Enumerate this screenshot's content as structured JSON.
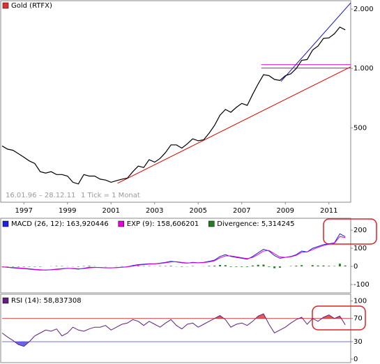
{
  "chart_data": [
    {
      "type": "line",
      "name": "Gold (RTFX)",
      "color": "#000000",
      "legend_color": "#e03030",
      "log": true,
      "annotations": [
        "16.01.96 – 28.12.11",
        "1 Tick = 1 Monat"
      ],
      "xlim": [
        1996.0,
        2012.0
      ],
      "xticks": [
        1997,
        1999,
        2001,
        2003,
        2005,
        2007,
        2009,
        2011
      ],
      "ylim": [
        210,
        2170
      ],
      "yticks": [
        {
          "value": 2000,
          "label": "2.000"
        },
        {
          "value": 1000,
          "label": "1.000"
        },
        500
      ],
      "x": [
        1996.0,
        1996.25,
        1996.5,
        1996.75,
        1997.0,
        1997.25,
        1997.5,
        1997.75,
        1998.0,
        1998.25,
        1998.5,
        1998.75,
        1999.0,
        1999.25,
        1999.5,
        1999.75,
        2000.0,
        2000.25,
        2000.5,
        2000.75,
        2001.0,
        2001.25,
        2001.5,
        2001.75,
        2002.0,
        2002.25,
        2002.5,
        2002.75,
        2003.0,
        2003.25,
        2003.5,
        2003.75,
        2004.0,
        2004.25,
        2004.5,
        2004.75,
        2005.0,
        2005.25,
        2005.5,
        2005.75,
        2006.0,
        2006.25,
        2006.5,
        2006.75,
        2007.0,
        2007.25,
        2007.5,
        2007.75,
        2008.0,
        2008.25,
        2008.5,
        2008.75,
        2009.0,
        2009.25,
        2009.5,
        2009.75,
        2010.0,
        2010.25,
        2010.5,
        2010.75,
        2011.0,
        2011.25,
        2011.5,
        2011.75
      ],
      "values": [
        405,
        390,
        385,
        370,
        355,
        340,
        330,
        300,
        295,
        300,
        290,
        290,
        285,
        265,
        260,
        290,
        285,
        285,
        275,
        272,
        265,
        270,
        275,
        278,
        300,
        320,
        315,
        345,
        335,
        350,
        375,
        410,
        410,
        395,
        415,
        440,
        430,
        435,
        470,
        515,
        580,
        620,
        600,
        635,
        665,
        650,
        740,
        835,
        930,
        920,
        880,
        870,
        920,
        940,
        1000,
        1100,
        1110,
        1240,
        1300,
        1420,
        1430,
        1500,
        1620,
        1570
      ],
      "trendlines": [
        {
          "color": "#e00000",
          "x": [
            2001.3,
            2012.0
          ],
          "values": [
            262,
            1020
          ]
        },
        {
          "color": "#2020c0",
          "x": [
            2008.8,
            2012.0
          ],
          "values": [
            860,
            2150
          ]
        },
        {
          "color": "#cc00cc",
          "x": [
            2007.9,
            2012.0
          ],
          "values": [
            1045,
            1045
          ]
        },
        {
          "color": "#cc00cc",
          "x": [
            2007.9,
            2012.0
          ],
          "values": [
            1005,
            1005
          ]
        }
      ]
    },
    {
      "type": "macd",
      "xlim": [
        1996.0,
        2012.0
      ],
      "ylim": [
        -146,
        258
      ],
      "yticks": [
        200,
        100,
        0,
        -100
      ],
      "x": [
        1996.0,
        1996.25,
        1996.5,
        1996.75,
        1997.0,
        1997.25,
        1997.5,
        1997.75,
        1998.0,
        1998.25,
        1998.5,
        1998.75,
        1999.0,
        1999.25,
        1999.5,
        1999.75,
        2000.0,
        2000.25,
        2000.5,
        2000.75,
        2001.0,
        2001.25,
        2001.5,
        2001.75,
        2002.0,
        2002.25,
        2002.5,
        2002.75,
        2003.0,
        2003.25,
        2003.5,
        2003.75,
        2004.0,
        2004.25,
        2004.5,
        2004.75,
        2005.0,
        2005.25,
        2005.5,
        2005.75,
        2006.0,
        2006.25,
        2006.5,
        2006.75,
        2007.0,
        2007.25,
        2007.5,
        2007.75,
        2008.0,
        2008.25,
        2008.5,
        2008.75,
        2009.0,
        2009.25,
        2009.5,
        2009.75,
        2010.0,
        2010.25,
        2010.5,
        2010.75,
        2011.0,
        2011.25,
        2011.5,
        2011.75
      ],
      "series": [
        {
          "name": "MACD (26, 12): 163,920446",
          "color": "#2020e0",
          "values": [
            -3,
            -5,
            -8,
            -10,
            -12,
            -15,
            -18,
            -20,
            -20,
            -18,
            -15,
            -12,
            -10,
            -12,
            -15,
            -10,
            -5,
            -5,
            -6,
            -8,
            -8,
            -6,
            -4,
            -2,
            5,
            10,
            12,
            15,
            15,
            18,
            22,
            28,
            25,
            20,
            18,
            22,
            20,
            22,
            28,
            35,
            55,
            65,
            55,
            50,
            45,
            40,
            55,
            75,
            95,
            85,
            60,
            45,
            50,
            55,
            65,
            85,
            80,
            100,
            110,
            120,
            125,
            130,
            180,
            164
          ]
        },
        {
          "name": "EXP (9): 158,606201",
          "color": "#e000e0",
          "values": [
            -2,
            -4,
            -6,
            -8,
            -10,
            -13,
            -16,
            -18,
            -20,
            -19,
            -17,
            -14,
            -11,
            -11,
            -13,
            -12,
            -8,
            -6,
            -6,
            -7,
            -8,
            -7,
            -5,
            -3,
            2,
            7,
            10,
            13,
            14,
            16,
            20,
            25,
            26,
            22,
            19,
            20,
            20,
            21,
            25,
            31,
            47,
            58,
            58,
            53,
            48,
            43,
            50,
            66,
            85,
            88,
            70,
            52,
            50,
            53,
            61,
            78,
            80,
            93,
            105,
            115,
            122,
            128,
            165,
            159
          ]
        },
        {
          "name": "Divergence: 5,314245",
          "color": "#208020",
          "bars": true,
          "values": [
            -1,
            -1,
            -2,
            -2,
            -2,
            -2,
            -2,
            -2,
            0,
            1,
            2,
            2,
            1,
            -1,
            -2,
            2,
            3,
            1,
            0,
            -1,
            0,
            1,
            1,
            1,
            3,
            3,
            2,
            2,
            1,
            2,
            2,
            3,
            -1,
            -2,
            -1,
            2,
            0,
            1,
            3,
            4,
            8,
            7,
            -3,
            -3,
            -3,
            -3,
            5,
            9,
            10,
            -3,
            -10,
            -7,
            0,
            2,
            4,
            7,
            0,
            7,
            5,
            5,
            3,
            2,
            15,
            5
          ]
        }
      ]
    },
    {
      "type": "rsi",
      "xlim": [
        1996.0,
        2012.0
      ],
      "ylim": [
        -6,
        108
      ],
      "yticks": [
        100,
        70,
        30,
        0
      ],
      "bands": [
        {
          "value": 70,
          "color": "#e03030",
          "side": "above"
        },
        {
          "value": 30,
          "color": "#4040e0",
          "side": "below"
        }
      ],
      "x": [
        1996.0,
        1996.25,
        1996.5,
        1996.75,
        1997.0,
        1997.25,
        1997.5,
        1997.75,
        1998.0,
        1998.25,
        1998.5,
        1998.75,
        1999.0,
        1999.25,
        1999.5,
        1999.75,
        2000.0,
        2000.25,
        2000.5,
        2000.75,
        2001.0,
        2001.25,
        2001.5,
        2001.75,
        2002.0,
        2002.25,
        2002.5,
        2002.75,
        2003.0,
        2003.25,
        2003.5,
        2003.75,
        2004.0,
        2004.25,
        2004.5,
        2004.75,
        2005.0,
        2005.25,
        2005.5,
        2005.75,
        2006.0,
        2006.25,
        2006.5,
        2006.75,
        2007.0,
        2007.25,
        2007.5,
        2007.75,
        2008.0,
        2008.25,
        2008.5,
        2008.75,
        2009.0,
        2009.25,
        2009.5,
        2009.75,
        2010.0,
        2010.25,
        2010.5,
        2010.75,
        2011.0,
        2011.25,
        2011.5,
        2011.75
      ],
      "series": [
        {
          "name": "RSI (14): 58,837308",
          "color": "#602080",
          "legend_color": "#602080",
          "values": [
            45,
            38,
            32,
            25,
            22,
            30,
            40,
            45,
            50,
            48,
            52,
            40,
            45,
            55,
            50,
            48,
            52,
            55,
            55,
            58,
            50,
            55,
            60,
            62,
            68,
            65,
            58,
            65,
            60,
            55,
            62,
            68,
            58,
            52,
            60,
            62,
            55,
            60,
            65,
            70,
            75,
            68,
            55,
            60,
            62,
            58,
            65,
            74,
            78,
            60,
            45,
            50,
            55,
            62,
            68,
            72,
            60,
            70,
            65,
            72,
            76,
            70,
            74,
            59
          ]
        }
      ]
    }
  ]
}
